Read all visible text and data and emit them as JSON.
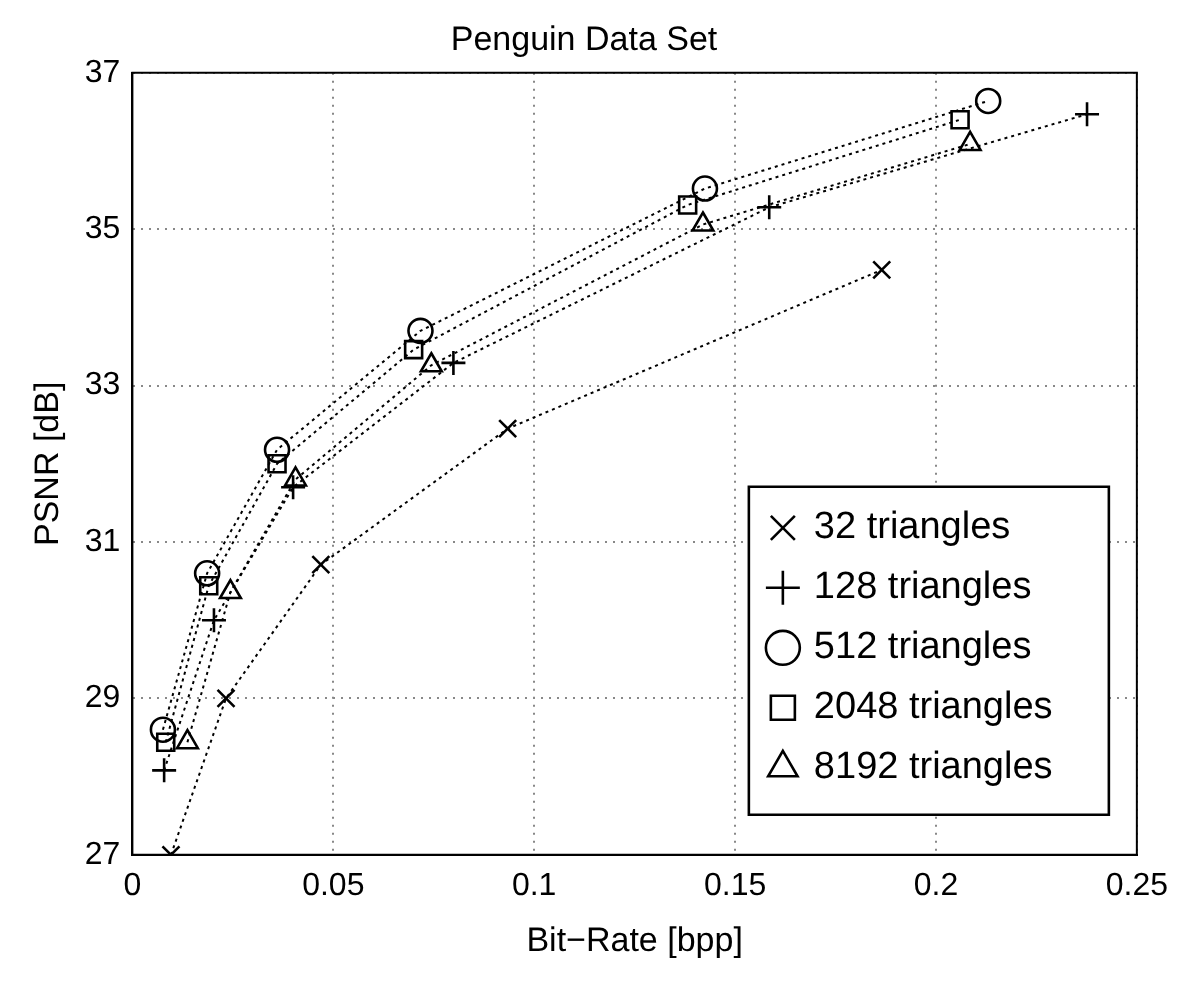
{
  "chart_data": {
    "type": "line",
    "title": "Penguin Data Set",
    "xlabel": "Bit−Rate [bpp]",
    "ylabel": "PSNR [dB]",
    "xlim": [
      0,
      0.25
    ],
    "xticks": [
      0,
      0.05,
      0.1,
      0.15,
      0.2,
      0.25
    ],
    "ylim": [
      27,
      37
    ],
    "yticks": [
      27,
      29,
      31,
      33,
      35,
      37
    ],
    "grid": true,
    "legend": "bottom right",
    "line_style": "dotted",
    "series": [
      {
        "name": "32 triangles",
        "color": "#000000",
        "marker": "cross",
        "x": [
          0.0096,
          0.0233,
          0.0469,
          0.0934,
          0.1865
        ],
        "values": [
          27.0,
          29.0,
          30.71,
          32.45,
          34.48
        ]
      },
      {
        "name": "128 triangles",
        "color": "#000000",
        "marker": "plus",
        "x": [
          0.0079,
          0.0203,
          0.04,
          0.0799,
          0.1585,
          0.2376
        ],
        "values": [
          28.08,
          30.0,
          31.7,
          33.29,
          35.28,
          36.47
        ]
      },
      {
        "name": "512 triangles",
        "color": "#000000",
        "marker": "circle",
        "x": [
          0.0076,
          0.0186,
          0.036,
          0.0717,
          0.1425,
          0.213
        ],
        "values": [
          28.6,
          30.6,
          32.18,
          33.7,
          35.52,
          36.64
        ]
      },
      {
        "name": "2048 triangles",
        "color": "#000000",
        "marker": "square",
        "x": [
          0.0083,
          0.019,
          0.036,
          0.07,
          0.1382,
          0.206
        ],
        "values": [
          28.44,
          30.44,
          32.0,
          33.46,
          35.31,
          36.4
        ]
      },
      {
        "name": "8192 triangles",
        "color": "#000000",
        "marker": "triangle",
        "x": [
          0.0137,
          0.0244,
          0.0406,
          0.0744,
          0.142,
          0.2085
        ],
        "values": [
          28.44,
          30.36,
          31.8,
          33.26,
          35.06,
          36.09
        ]
      }
    ]
  }
}
